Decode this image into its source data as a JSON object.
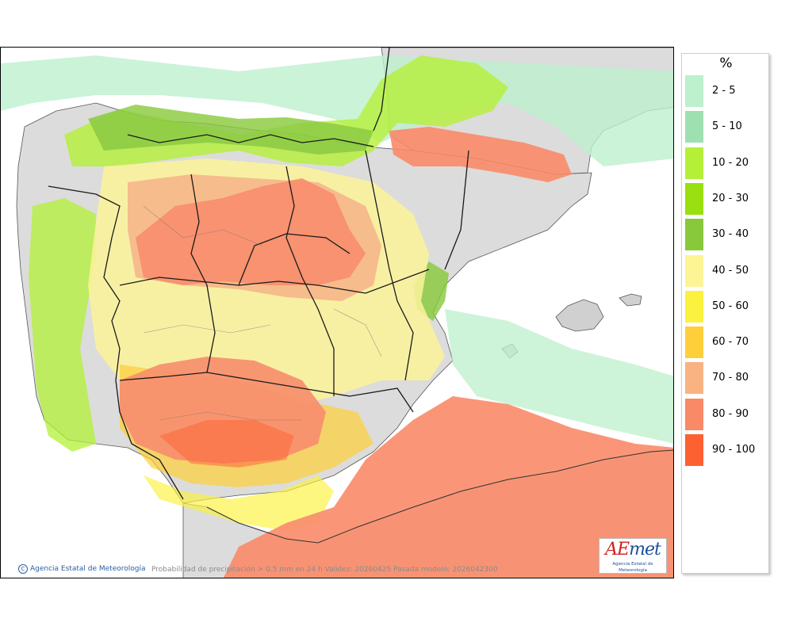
{
  "map": {
    "credit": "Agencia Estatal de Meteorología",
    "caption": "Probabilidad de precipitación > 0.5 mm en 24 h Validez: 20260425 Pasada modelo: 2026042300",
    "logo_text": "AEmet",
    "logo_subtext": "Agencia Estatal de Meteorología"
  },
  "legend": {
    "unit": "%",
    "classes": [
      {
        "label": "2 - 5",
        "color": "#bdf0cc"
      },
      {
        "label": "5 - 10",
        "color": "#9fe0b1"
      },
      {
        "label": "10 - 20",
        "color": "#b4f038"
      },
      {
        "label": "20 - 30",
        "color": "#9adf10"
      },
      {
        "label": "30 - 40",
        "color": "#87c93b"
      },
      {
        "label": "40 - 50",
        "color": "#fdf595"
      },
      {
        "label": "50 - 60",
        "color": "#fbf13f"
      },
      {
        "label": "60 - 70",
        "color": "#fecf3b"
      },
      {
        "label": "70 - 80",
        "color": "#f9b282"
      },
      {
        "label": "80 - 90",
        "color": "#f98a67"
      },
      {
        "label": "90 - 100",
        "color": "#fd6131"
      }
    ]
  },
  "colors": {
    "land": "#dcdcdc",
    "sea": "#ffffff",
    "border": "#1a1a1a"
  }
}
